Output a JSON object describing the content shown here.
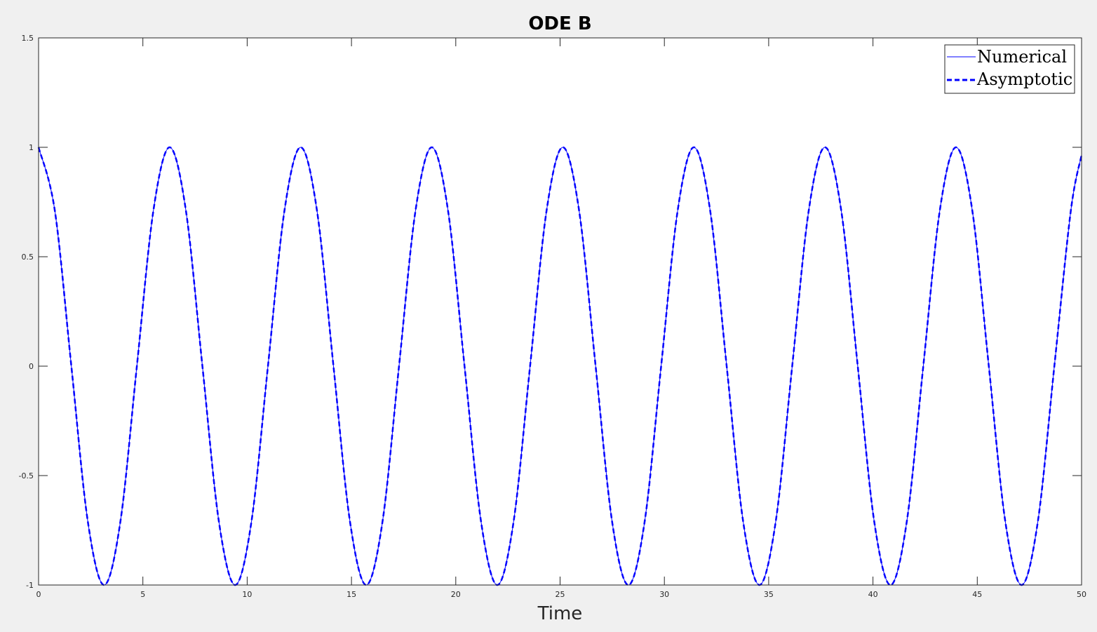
{
  "chart_data": {
    "type": "line",
    "title": "ODE B",
    "xlabel": "Time",
    "ylabel": "",
    "xlim": [
      0,
      50
    ],
    "ylim": [
      -1,
      1.5
    ],
    "xticks": [
      0,
      5,
      10,
      15,
      20,
      25,
      30,
      35,
      40,
      45,
      50
    ],
    "xtick_labels": [
      "0",
      "5",
      "10",
      "15",
      "20",
      "25",
      "30",
      "35",
      "40",
      "45",
      "50"
    ],
    "yticks": [
      -1,
      -0.5,
      0,
      0.5,
      1,
      1.5
    ],
    "ytick_labels": [
      "-1",
      "-0.5",
      "0",
      "0.5",
      "1",
      "1.5"
    ],
    "grid": false,
    "legend_position": "top-right",
    "x": [
      0,
      0.785,
      1.571,
      2.356,
      3.142,
      3.927,
      4.712,
      5.498,
      6.283,
      7.069,
      7.854,
      8.639,
      9.425,
      10.21,
      10.996,
      11.781,
      12.566,
      13.352,
      14.137,
      14.923,
      15.708,
      16.493,
      17.279,
      18.064,
      18.85,
      19.635,
      20.42,
      21.206,
      21.991,
      22.777,
      23.562,
      24.347,
      25.133,
      25.918,
      26.704,
      27.489,
      28.274,
      29.06,
      29.845,
      30.631,
      31.416,
      32.201,
      32.987,
      33.772,
      34.558,
      35.343,
      36.128,
      36.914,
      37.699,
      38.485,
      39.27,
      40.055,
      40.841,
      41.626,
      42.412,
      43.197,
      43.982,
      44.768,
      45.553,
      46.339,
      47.124,
      47.909,
      48.695,
      49.48,
      50
    ],
    "series": [
      {
        "name": "Numerical",
        "style": "solid",
        "color": "#0000ff",
        "values": [
          1,
          0.707,
          0,
          -0.707,
          -1,
          -0.707,
          0,
          0.707,
          1,
          0.707,
          0,
          -0.707,
          -1,
          -0.707,
          0,
          0.707,
          1,
          0.707,
          0,
          -0.707,
          -1,
          -0.707,
          0,
          0.707,
          1,
          0.707,
          0,
          -0.707,
          -1,
          -0.707,
          0,
          0.707,
          1,
          0.707,
          0,
          -0.707,
          -1,
          -0.707,
          0,
          0.707,
          1,
          0.707,
          0,
          -0.707,
          -1,
          -0.707,
          0,
          0.707,
          1,
          0.707,
          0,
          -0.707,
          -1,
          -0.707,
          0,
          0.707,
          1,
          0.707,
          0,
          -0.707,
          -1,
          -0.707,
          0,
          0.707,
          0.965
        ]
      },
      {
        "name": "Asymptotic",
        "style": "dashed",
        "color": "#0000ff",
        "values": [
          1,
          0.707,
          0,
          -0.707,
          -1,
          -0.707,
          0,
          0.707,
          1,
          0.707,
          0,
          -0.707,
          -1,
          -0.707,
          0,
          0.707,
          1,
          0.707,
          0,
          -0.707,
          -1,
          -0.707,
          0,
          0.707,
          1,
          0.707,
          0,
          -0.707,
          -1,
          -0.707,
          0,
          0.707,
          1,
          0.707,
          0,
          -0.707,
          -1,
          -0.707,
          0,
          0.707,
          1,
          0.707,
          0,
          -0.707,
          -1,
          -0.707,
          0,
          0.707,
          1,
          0.707,
          0,
          -0.707,
          -1,
          -0.707,
          0,
          0.707,
          1,
          0.707,
          0,
          -0.707,
          -1,
          -0.707,
          0,
          0.707,
          0.965
        ]
      }
    ]
  }
}
